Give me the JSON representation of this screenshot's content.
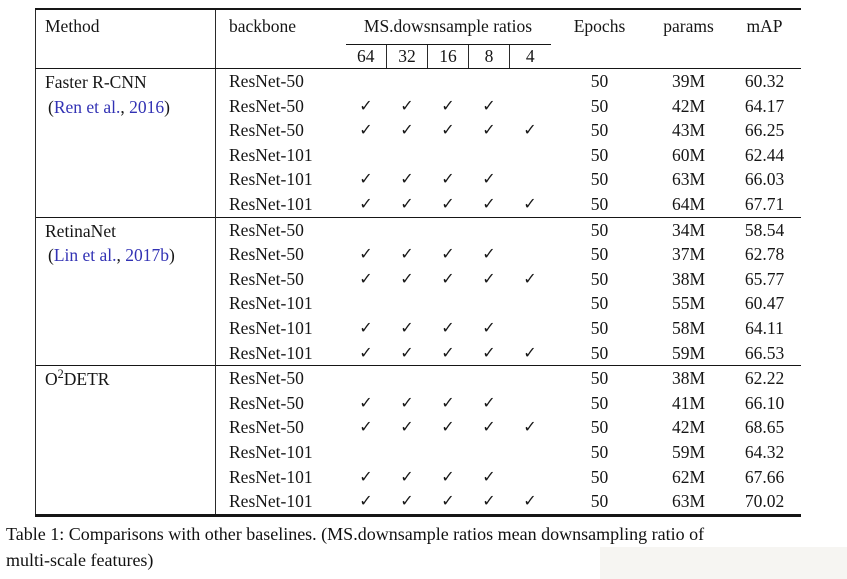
{
  "page": {
    "caption_lines": [
      "Table 1: Comparisons with other baselines. (MS.downsample ratios mean downsampling ratio of",
      "multi-scale features)"
    ]
  },
  "table": {
    "check_icon": "✓",
    "link_color": "#3232b4",
    "headers": {
      "method": "Method",
      "backbone": "backbone",
      "ms_ratios": "MS.dowsnsample ratios",
      "ratio_cols": [
        "64",
        "32",
        "16",
        "8",
        "4"
      ],
      "epochs": "Epochs",
      "params": "params",
      "map": "mAP"
    },
    "groups": [
      {
        "name_parts": [
          {
            "t": "Faster R-CNN"
          }
        ],
        "citation": {
          "prefix": "(",
          "authors": "Ren et al.",
          "separator": ", ",
          "year": "2016",
          "suffix": ")"
        },
        "rows": [
          {
            "backbone": "ResNet-50",
            "checks": [
              false,
              false,
              false,
              false,
              false
            ],
            "epochs": "50",
            "params": "39M",
            "map": "60.32"
          },
          {
            "backbone": "ResNet-50",
            "checks": [
              true,
              true,
              true,
              true,
              false
            ],
            "epochs": "50",
            "params": "42M",
            "map": "64.17"
          },
          {
            "backbone": "ResNet-50",
            "checks": [
              true,
              true,
              true,
              true,
              true
            ],
            "epochs": "50",
            "params": "43M",
            "map": "66.25"
          },
          {
            "backbone": "ResNet-101",
            "checks": [
              false,
              false,
              false,
              false,
              false
            ],
            "epochs": "50",
            "params": "60M",
            "map": "62.44"
          },
          {
            "backbone": "ResNet-101",
            "checks": [
              true,
              true,
              true,
              true,
              false
            ],
            "epochs": "50",
            "params": "63M",
            "map": "66.03"
          },
          {
            "backbone": "ResNet-101",
            "checks": [
              true,
              true,
              true,
              true,
              true
            ],
            "epochs": "50",
            "params": "64M",
            "map": "67.71"
          }
        ]
      },
      {
        "name_parts": [
          {
            "t": "RetinaNet"
          }
        ],
        "citation": {
          "prefix": "(",
          "authors": "Lin et al.",
          "separator": ", ",
          "year": "2017b",
          "suffix": ")"
        },
        "rows": [
          {
            "backbone": "ResNet-50",
            "checks": [
              false,
              false,
              false,
              false,
              false
            ],
            "epochs": "50",
            "params": "34M",
            "map": "58.54"
          },
          {
            "backbone": "ResNet-50",
            "checks": [
              true,
              true,
              true,
              true,
              false
            ],
            "epochs": "50",
            "params": "37M",
            "map": "62.78"
          },
          {
            "backbone": "ResNet-50",
            "checks": [
              true,
              true,
              true,
              true,
              true
            ],
            "epochs": "50",
            "params": "38M",
            "map": "65.77"
          },
          {
            "backbone": "ResNet-101",
            "checks": [
              false,
              false,
              false,
              false,
              false
            ],
            "epochs": "50",
            "params": "55M",
            "map": "60.47"
          },
          {
            "backbone": "ResNet-101",
            "checks": [
              true,
              true,
              true,
              true,
              false
            ],
            "epochs": "50",
            "params": "58M",
            "map": "64.11"
          },
          {
            "backbone": "ResNet-101",
            "checks": [
              true,
              true,
              true,
              true,
              true
            ],
            "epochs": "50",
            "params": "59M",
            "map": "66.53"
          }
        ]
      },
      {
        "name_parts": [
          {
            "t": "O"
          },
          {
            "t": "2",
            "sup": true
          },
          {
            "t": "DETR"
          }
        ],
        "citation": null,
        "rows": [
          {
            "backbone": "ResNet-50",
            "checks": [
              false,
              false,
              false,
              false,
              false
            ],
            "epochs": "50",
            "params": "38M",
            "map": "62.22"
          },
          {
            "backbone": "ResNet-50",
            "checks": [
              true,
              true,
              true,
              true,
              false
            ],
            "epochs": "50",
            "params": "41M",
            "map": "66.10"
          },
          {
            "backbone": "ResNet-50",
            "checks": [
              true,
              true,
              true,
              true,
              true
            ],
            "epochs": "50",
            "params": "42M",
            "map": "68.65"
          },
          {
            "backbone": "ResNet-101",
            "checks": [
              false,
              false,
              false,
              false,
              false
            ],
            "epochs": "50",
            "params": "59M",
            "map": "64.32"
          },
          {
            "backbone": "ResNet-101",
            "checks": [
              true,
              true,
              true,
              true,
              false
            ],
            "epochs": "50",
            "params": "62M",
            "map": "67.66"
          },
          {
            "backbone": "ResNet-101",
            "checks": [
              true,
              true,
              true,
              true,
              true
            ],
            "epochs": "50",
            "params": "63M",
            "map": "70.02"
          }
        ]
      }
    ]
  }
}
